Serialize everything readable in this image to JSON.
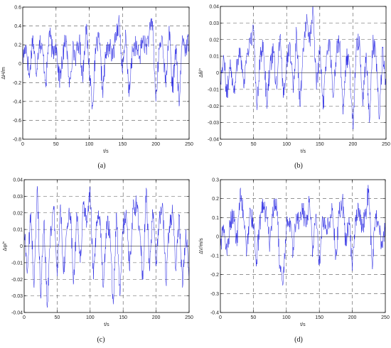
{
  "chart_data": [
    {
      "type": "line",
      "caption": "(a)",
      "xlabel": "t/s",
      "ylabel": "ΔH/m",
      "xlim": [
        0,
        250
      ],
      "ylim": [
        -0.8,
        0.6
      ],
      "xticks": [
        0,
        50,
        100,
        150,
        200,
        250
      ],
      "yticks": [
        -0.8,
        -0.6,
        -0.4,
        -0.2,
        0,
        0.2,
        0.4,
        0.6
      ],
      "ytick_labels": [
        "-0.8",
        "-0.6",
        "-0.4",
        "-0.2",
        "0",
        "0.2",
        "0.4",
        "0.6"
      ],
      "grid": true,
      "series": [
        {
          "color": "#1010e0",
          "x_start": 0,
          "x_step": 5,
          "values": [
            0.05,
            0.2,
            -0.15,
            0.3,
            -0.1,
            0.25,
            0.12,
            -0.2,
            0.35,
            0.1,
            0.22,
            -0.18,
            0.05,
            0.3,
            -0.25,
            0.15,
            0.08,
            0.25,
            -0.15,
            0.4,
            -0.05,
            -0.45,
            0.18,
            0.25,
            -0.3,
            0.1,
            0.2,
            0.05,
            0.32,
            0.45,
            -0.1,
            0.3,
            -0.35,
            0.15,
            0.2,
            0.05,
            0.25,
            0.18,
            0.3,
            0.45,
            -0.4,
            0.15,
            0.28,
            -0.25,
            0.4,
            -0.3,
            0.2,
            -0.45,
            0.3,
            0.15,
            0.25
          ]
        }
      ]
    },
    {
      "type": "line",
      "caption": "(b)",
      "xlabel": "t/s",
      "ylabel": "Δθ/°",
      "xlim": [
        0,
        250
      ],
      "ylim": [
        -0.04,
        0.04
      ],
      "xticks": [
        0,
        50,
        100,
        150,
        200,
        250
      ],
      "yticks": [
        -0.04,
        -0.03,
        -0.02,
        -0.01,
        0,
        0.01,
        0.02,
        0.03,
        0.04
      ],
      "ytick_labels": [
        "-0.04",
        "-0.03",
        "-0.02",
        "-0.01",
        "0",
        "0.01",
        "0.02",
        "0.03",
        "0.04"
      ],
      "grid": true,
      "series": [
        {
          "color": "#1010e0",
          "x_start": 0,
          "x_step": 5,
          "values": [
            -0.005,
            0.01,
            -0.015,
            0.008,
            -0.012,
            0.005,
            0.015,
            -0.008,
            0.012,
            0.018,
            0.025,
            -0.02,
            0.01,
            0.015,
            -0.018,
            0.005,
            0.012,
            -0.01,
            0.022,
            -0.015,
            0.008,
            0.018,
            -0.012,
            0.025,
            -0.02,
            0.015,
            0.03,
            0.02,
            0.038,
            -0.01,
            0.015,
            -0.022,
            0.01,
            0.02,
            -0.015,
            0.012,
            0.018,
            -0.025,
            0.01,
            0.005,
            -0.034,
            0.015,
            0.022,
            -0.02,
            0.012,
            -0.03,
            0.018,
            0.01,
            -0.028,
            0.015,
            -0.01
          ]
        }
      ]
    },
    {
      "type": "line",
      "caption": "(c)",
      "xlabel": "t/s",
      "ylabel": "Δφ/°",
      "xlim": [
        0,
        250
      ],
      "ylim": [
        -0.04,
        0.04
      ],
      "xticks": [
        0,
        50,
        100,
        150,
        200,
        250
      ],
      "yticks": [
        -0.04,
        -0.03,
        -0.02,
        -0.01,
        0,
        0.01,
        0.02,
        0.03,
        0.04
      ],
      "ytick_labels": [
        "-0.04",
        "-0.03",
        "-0.02",
        "-0.01",
        "0",
        "0.01",
        "0.02",
        "0.03",
        "0.04"
      ],
      "grid": true,
      "series": [
        {
          "color": "#1010e0",
          "x_start": 0,
          "x_step": 5,
          "values": [
            0.01,
            -0.015,
            0.02,
            -0.025,
            0.036,
            -0.03,
            0.015,
            -0.037,
            0.01,
            0.022,
            -0.018,
            0.025,
            -0.015,
            0.012,
            0.02,
            -0.022,
            0.018,
            -0.01,
            0.025,
            0.015,
            0.033,
            -0.02,
            0.012,
            0.018,
            -0.025,
            0.015,
            0.01,
            -0.035,
            0.02,
            -0.03,
            0.012,
            0.018,
            -0.015,
            0.022,
            0.025,
            0.01,
            -0.02,
            0.035,
            -0.015,
            0.02,
            -0.012,
            0.018,
            0.025,
            -0.022,
            0.012,
            0.02,
            -0.015,
            0.018,
            -0.025,
            0.01,
            -0.02
          ]
        }
      ]
    },
    {
      "type": "line",
      "caption": "(d)",
      "xlabel": "t/s",
      "ylabel": "ΔV/m/s",
      "xlim": [
        0,
        250
      ],
      "ylim": [
        -0.4,
        0.3
      ],
      "xticks": [
        0,
        50,
        100,
        150,
        200,
        250
      ],
      "yticks": [
        -0.4,
        -0.3,
        -0.2,
        -0.1,
        0,
        0.1,
        0.2,
        0.3
      ],
      "ytick_labels": [
        "-0.4",
        "-0.3",
        "-0.2",
        "-0.1",
        "0",
        "0.1",
        "0.2",
        "0.3"
      ],
      "grid": true,
      "series": [
        {
          "color": "#1010e0",
          "x_start": 0,
          "x_step": 5,
          "values": [
            -0.05,
            0.05,
            -0.1,
            0.08,
            0.12,
            -0.05,
            0.25,
            0.1,
            -0.08,
            0.15,
            0.05,
            -0.12,
            0.08,
            0.18,
            0.1,
            -0.05,
            0.12,
            0.2,
            -0.15,
            -0.25,
            0.05,
            0.1,
            -0.1,
            0.12,
            0.08,
            0.15,
            0.05,
            0.2,
            -0.08,
            0.12,
            -0.15,
            0.1,
            0.05,
            0.08,
            0.15,
            -0.1,
            0.12,
            0.2,
            -0.05,
            0.1,
            -0.18,
            0.08,
            0.15,
            0.05,
            0.12,
            0.25,
            -0.15,
            0.1,
            0.08,
            -0.05,
            0.05
          ]
        }
      ]
    }
  ]
}
